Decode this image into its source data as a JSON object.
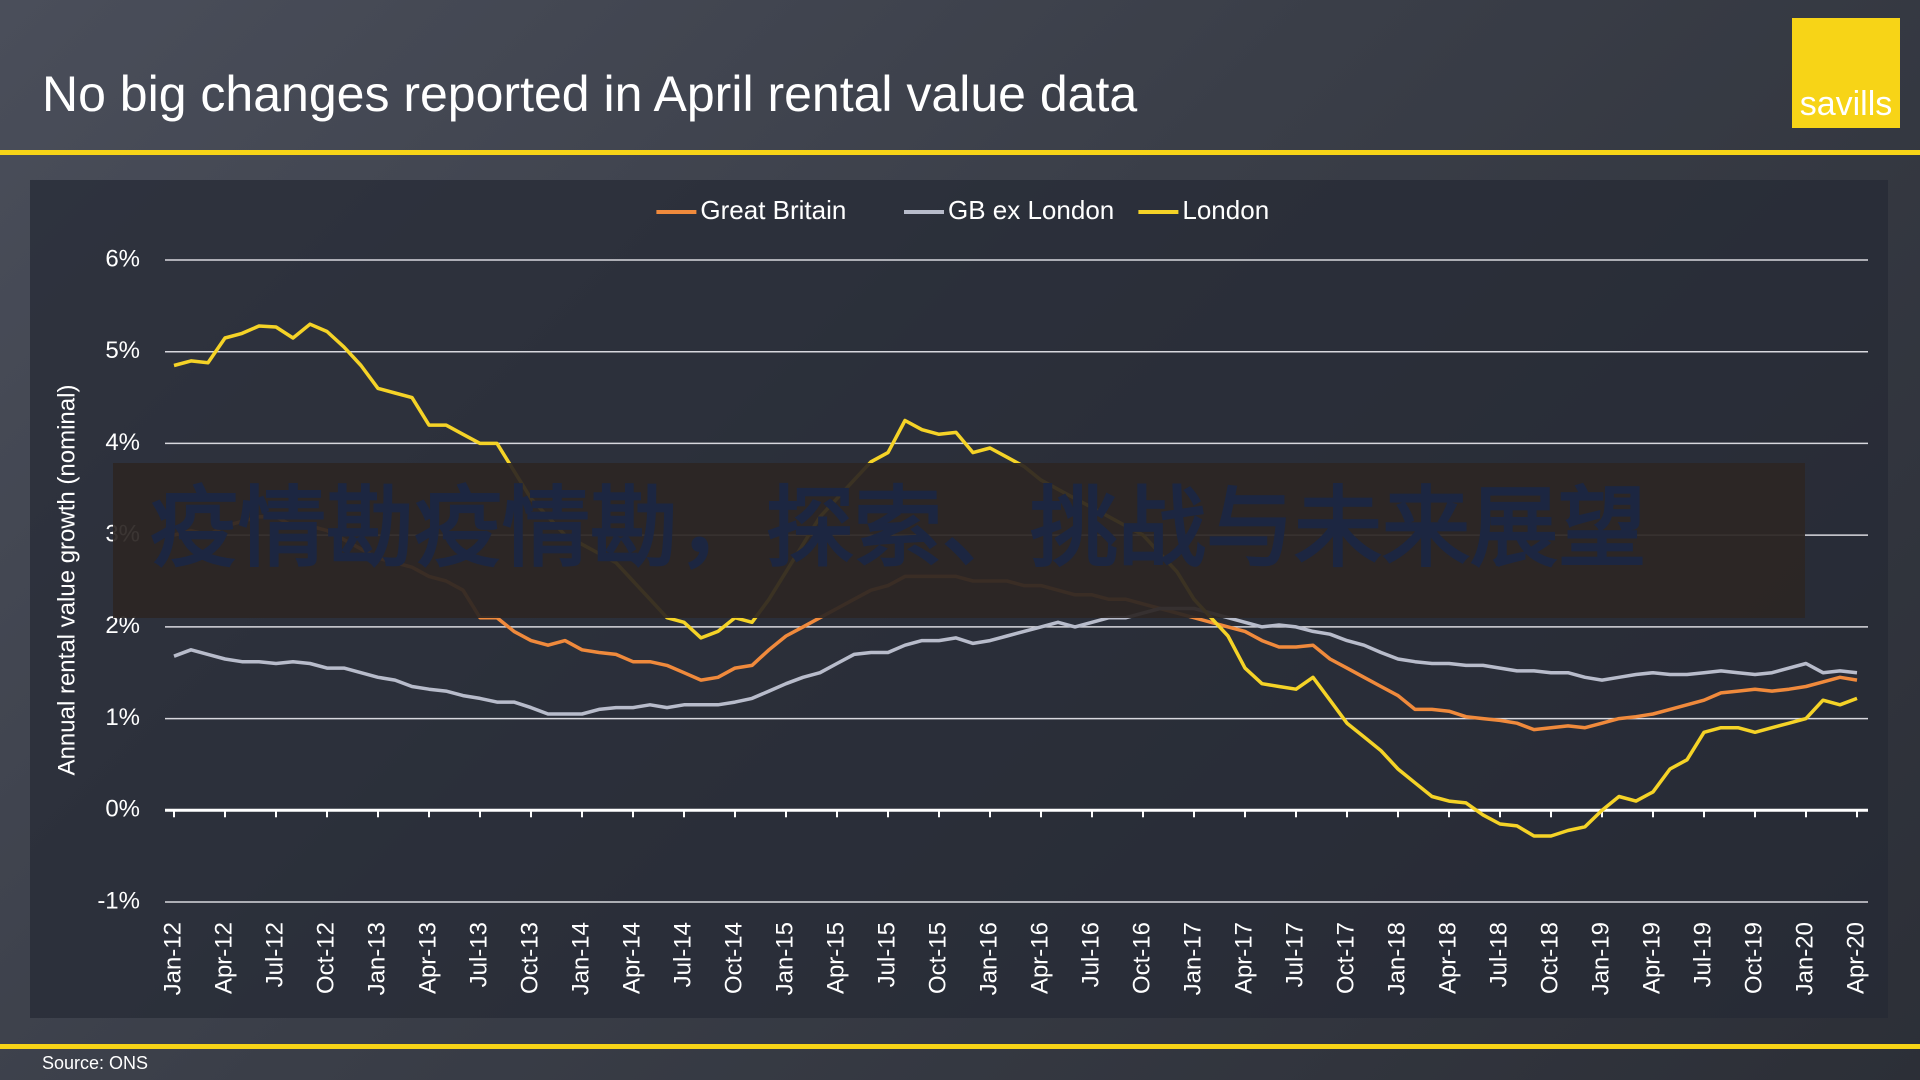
{
  "brand": "savills",
  "overlay_text": "疫情勘疫情勘，探索、挑战与未来展望",
  "source": "Source: ONS",
  "chart_data": {
    "type": "line",
    "title": "No big changes reported in April rental value data",
    "y_label": "Annual rental value growth (nominal)",
    "categories": [
      "Jan-12",
      null,
      null,
      "Apr-12",
      null,
      null,
      "Jul-12",
      null,
      null,
      "Oct-12",
      null,
      null,
      "Jan-13",
      null,
      null,
      "Apr-13",
      null,
      null,
      "Jul-13",
      null,
      null,
      "Oct-13",
      null,
      null,
      "Jan-14",
      null,
      null,
      "Apr-14",
      null,
      null,
      "Jul-14",
      null,
      null,
      "Oct-14",
      null,
      null,
      "Jan-15",
      null,
      null,
      "Apr-15",
      null,
      null,
      "Jul-15",
      null,
      null,
      "Oct-15",
      null,
      null,
      "Jan-16",
      null,
      null,
      "Apr-16",
      null,
      null,
      "Jul-16",
      null,
      null,
      "Oct-16",
      null,
      null,
      "Jan-17",
      null,
      null,
      "Apr-17",
      null,
      null,
      "Jul-17",
      null,
      null,
      "Oct-17",
      null,
      null,
      "Jan-18",
      null,
      null,
      "Apr-18",
      null,
      null,
      "Jul-18",
      null,
      null,
      "Oct-18",
      null,
      null,
      "Jan-19",
      null,
      null,
      "Apr-19",
      null,
      null,
      "Jul-19",
      null,
      null,
      "Oct-19",
      null,
      null,
      "Jan-20",
      null,
      null,
      "Apr-20"
    ],
    "series": [
      {
        "name": "Great Britain",
        "color": "#f08a3c",
        "values": [
          3.0,
          3.05,
          3.0,
          3.1,
          3.15,
          3.2,
          3.2,
          3.1,
          3.1,
          3.05,
          2.95,
          2.85,
          2.75,
          2.7,
          2.65,
          2.55,
          2.5,
          2.4,
          2.1,
          2.1,
          1.95,
          1.85,
          1.8,
          1.85,
          1.75,
          1.72,
          1.7,
          1.62,
          1.62,
          1.58,
          1.5,
          1.42,
          1.45,
          1.55,
          1.58,
          1.75,
          1.9,
          2.0,
          2.1,
          2.2,
          2.3,
          2.4,
          2.45,
          2.55,
          2.55,
          2.55,
          2.55,
          2.5,
          2.5,
          2.5,
          2.45,
          2.45,
          2.4,
          2.35,
          2.35,
          2.3,
          2.3,
          2.25,
          2.2,
          2.15,
          2.1,
          2.05,
          2.0,
          1.95,
          1.85,
          1.78,
          1.78,
          1.8,
          1.65,
          1.55,
          1.45,
          1.35,
          1.25,
          1.1,
          1.1,
          1.08,
          1.02,
          1.0,
          0.98,
          0.95,
          0.88,
          0.9,
          0.92,
          0.9,
          0.95,
          1.0,
          1.02,
          1.05,
          1.1,
          1.15,
          1.2,
          1.28,
          1.3,
          1.32,
          1.3,
          1.32,
          1.35,
          1.4,
          1.45,
          1.42
        ]
      },
      {
        "name": "GB ex London",
        "color": "#b8bccb",
        "values": [
          1.68,
          1.75,
          1.7,
          1.65,
          1.62,
          1.62,
          1.6,
          1.62,
          1.6,
          1.55,
          1.55,
          1.5,
          1.45,
          1.42,
          1.35,
          1.32,
          1.3,
          1.25,
          1.22,
          1.18,
          1.18,
          1.12,
          1.05,
          1.05,
          1.05,
          1.1,
          1.12,
          1.12,
          1.15,
          1.12,
          1.15,
          1.15,
          1.15,
          1.18,
          1.22,
          1.3,
          1.38,
          1.45,
          1.5,
          1.6,
          1.7,
          1.72,
          1.72,
          1.8,
          1.85,
          1.85,
          1.88,
          1.82,
          1.85,
          1.9,
          1.95,
          2.0,
          2.05,
          2.0,
          2.05,
          2.1,
          2.1,
          2.15,
          2.2,
          2.2,
          2.2,
          2.15,
          2.1,
          2.05,
          2.0,
          2.02,
          2.0,
          1.95,
          1.92,
          1.85,
          1.8,
          1.72,
          1.65,
          1.62,
          1.6,
          1.6,
          1.58,
          1.58,
          1.55,
          1.52,
          1.52,
          1.5,
          1.5,
          1.45,
          1.42,
          1.45,
          1.48,
          1.5,
          1.48,
          1.48,
          1.5,
          1.52,
          1.5,
          1.48,
          1.5,
          1.55,
          1.6,
          1.5,
          1.52,
          1.5
        ]
      },
      {
        "name": "London",
        "color": "#f5d327",
        "values": [
          4.85,
          4.9,
          4.88,
          5.15,
          5.2,
          5.28,
          5.27,
          5.15,
          5.3,
          5.22,
          5.05,
          4.85,
          4.6,
          4.55,
          4.5,
          4.2,
          4.2,
          4.1,
          4.0,
          4.0,
          3.7,
          3.4,
          3.2,
          3.0,
          2.9,
          2.8,
          2.7,
          2.5,
          2.3,
          2.1,
          2.05,
          1.88,
          1.95,
          2.1,
          2.05,
          2.3,
          2.6,
          2.9,
          3.2,
          3.4,
          3.6,
          3.8,
          3.9,
          4.25,
          4.15,
          4.1,
          4.12,
          3.9,
          3.95,
          3.85,
          3.75,
          3.6,
          3.5,
          3.4,
          3.3,
          3.2,
          3.1,
          3.0,
          2.8,
          2.6,
          2.3,
          2.1,
          1.9,
          1.55,
          1.38,
          1.35,
          1.32,
          1.45,
          1.2,
          0.95,
          0.8,
          0.65,
          0.45,
          0.3,
          0.15,
          0.1,
          0.08,
          -0.05,
          -0.15,
          -0.17,
          -0.28,
          -0.28,
          -0.22,
          -0.18,
          0.0,
          0.15,
          0.1,
          0.2,
          0.45,
          0.55,
          0.85,
          0.9,
          0.9,
          0.85,
          0.9,
          0.95,
          1.0,
          1.2,
          1.15,
          1.22
        ]
      }
    ],
    "ylim": [
      -1,
      6
    ],
    "yticks": [
      {
        "value": -1,
        "label": "-1%"
      },
      {
        "value": 0,
        "label": "0%"
      },
      {
        "value": 1,
        "label": "1%"
      },
      {
        "value": 2,
        "label": "2%"
      },
      {
        "value": 3,
        "label": "3%"
      },
      {
        "value": 4,
        "label": "4%"
      },
      {
        "value": 5,
        "label": "5%"
      },
      {
        "value": 6,
        "label": "6%"
      }
    ],
    "grid": true,
    "legend": "top"
  }
}
